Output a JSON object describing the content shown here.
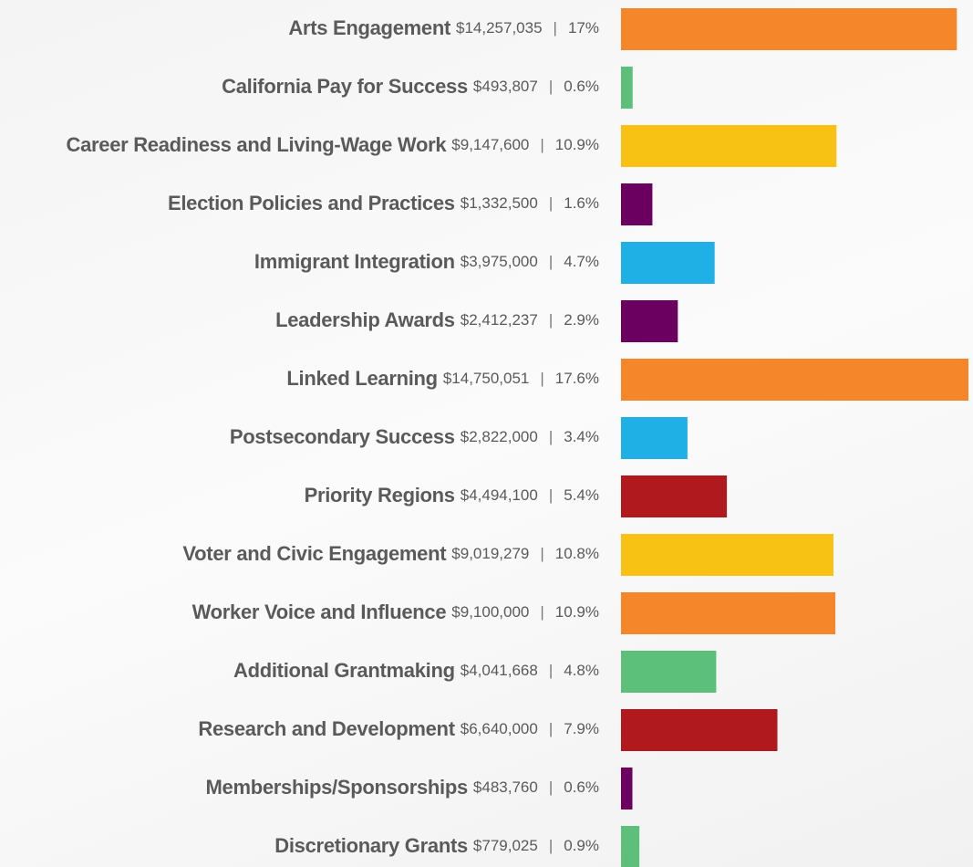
{
  "chart_data": {
    "type": "hbar",
    "categories": [
      "Arts Engagement",
      "California Pay for Success",
      "Career Readiness and Living-Wage Work",
      "Election Policies and Practices",
      "Immigrant Integration",
      "Leadership Awards",
      "Linked Learning",
      "Postsecondary Success",
      "Priority Regions",
      "Voter and Civic Engagement",
      "Worker Voice and Influence",
      "Additional Grantmaking",
      "Research and Development",
      "Memberships/Sponsorships",
      "Discretionary Grants"
    ],
    "values": [
      14257035,
      493807,
      9147600,
      1332500,
      3975000,
      2412237,
      14750051,
      2822000,
      4494100,
      9019279,
      9100000,
      4041668,
      6640000,
      483760,
      779025
    ],
    "value_labels": [
      "$14,257,035",
      "$493,807",
      "$9,147,600",
      "$1,332,500",
      "$3,975,000",
      "$2,412,237",
      "$14,750,051",
      "$2,822,000",
      "$4,494,100",
      "$9,019,279",
      "$9,100,000",
      "$4,041,668",
      "$6,640,000",
      "$483,760",
      "$779,025"
    ],
    "separator": "|",
    "percent_labels": [
      "17%",
      "0.6%",
      "10.9%",
      "1.6%",
      "4.7%",
      "2.9%",
      "17.6%",
      "3.4%",
      "5.4%",
      "10.8%",
      "10.9%",
      "4.8%",
      "7.9%",
      "0.6%",
      "0.9%"
    ],
    "colors": [
      "#f5862a",
      "#5cc07a",
      "#f8c214",
      "#6b0060",
      "#1fb0e6",
      "#6b0060",
      "#f5862a",
      "#1fb0e6",
      "#b0191e",
      "#f8c214",
      "#f5862a",
      "#5cc07a",
      "#b0191e",
      "#6b0060",
      "#5cc07a"
    ]
  }
}
